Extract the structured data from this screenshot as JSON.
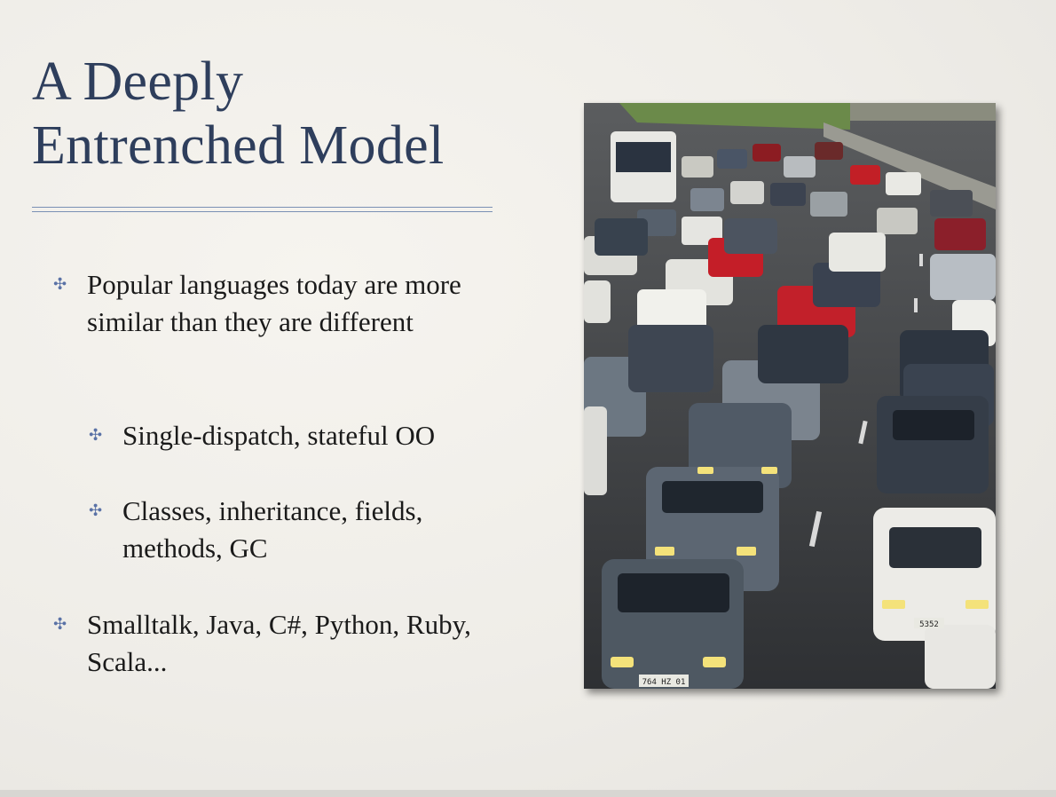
{
  "slide": {
    "title_line1": "A Deeply",
    "title_line2": "Entrenched Model",
    "bullets": [
      {
        "text": " Popular languages today are more similar than they are different",
        "level": 1
      },
      {
        "text": "Single-dispatch, stateful OO",
        "level": 2
      },
      {
        "text": "Classes, inheritance, fields, methods, GC",
        "level": 2
      },
      {
        "text": "Smalltalk, Java, C#, Python, Ruby, Scala...",
        "level": 1
      }
    ],
    "bullet_symbol": "✣",
    "photo": {
      "subject": "traffic-jam-photo",
      "plate_left": "764 HZ 01",
      "plate_right": "5352"
    }
  },
  "colors": {
    "title": "#2e3e5c",
    "bullet": "#5a72a6",
    "rule": "#7a90b4",
    "background": "#efede8"
  }
}
